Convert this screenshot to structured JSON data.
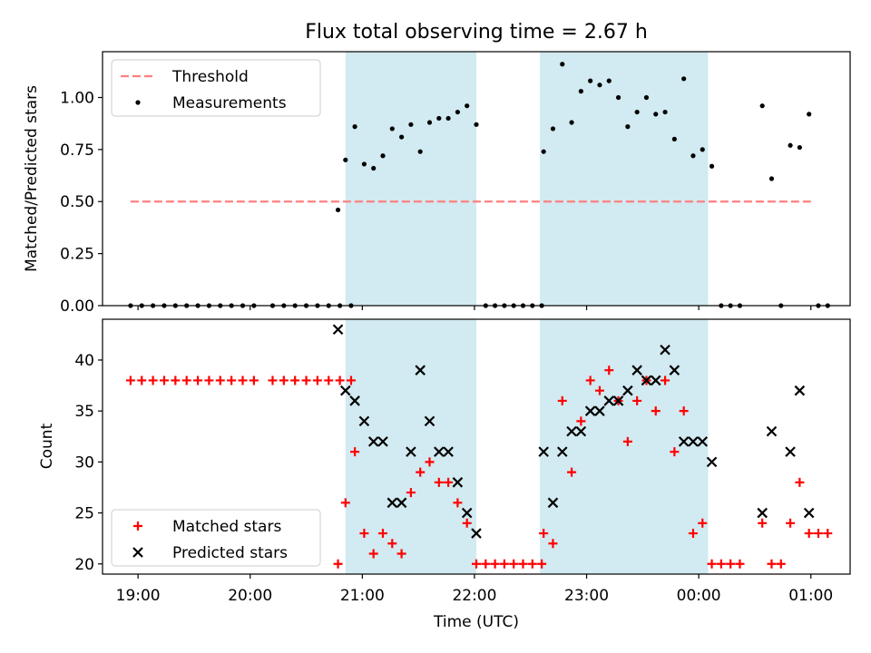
{
  "title": "Flux total observing time = 2.67 h",
  "chart_data": [
    {
      "type": "scatter",
      "ylabel": "Matched/Predicted stars",
      "ylim": [
        0,
        1.22
      ],
      "yticks": [
        0.0,
        0.25,
        0.5,
        0.75,
        1.0
      ],
      "ytick_labels": [
        "0.00",
        "0.25",
        "0.50",
        "0.75",
        "1.00"
      ],
      "threshold": {
        "name": "Threshold",
        "value": 0.5,
        "x_start": "18:56",
        "x_end": "01:00",
        "color": "#ff7f7f",
        "style": "dashed"
      },
      "series": [
        {
          "name": "Measurements",
          "color": "#000000",
          "marker": "dot",
          "points": [
            [
              "18:56",
              0
            ],
            [
              "19:02",
              0
            ],
            [
              "19:08",
              0
            ],
            [
              "19:14",
              0
            ],
            [
              "19:20",
              0
            ],
            [
              "19:26",
              0
            ],
            [
              "19:32",
              0
            ],
            [
              "19:38",
              0
            ],
            [
              "19:44",
              0
            ],
            [
              "19:50",
              0
            ],
            [
              "19:56",
              0
            ],
            [
              "20:02",
              0
            ],
            [
              "20:12",
              0
            ],
            [
              "20:18",
              0
            ],
            [
              "20:24",
              0
            ],
            [
              "20:30",
              0
            ],
            [
              "20:36",
              0
            ],
            [
              "20:42",
              0
            ],
            [
              "20:48",
              0
            ],
            [
              "20:54",
              0
            ],
            [
              "20:47",
              0.46
            ],
            [
              "20:51",
              0.7
            ],
            [
              "20:56",
              0.86
            ],
            [
              "21:01",
              0.68
            ],
            [
              "21:06",
              0.66
            ],
            [
              "21:11",
              0.72
            ],
            [
              "21:16",
              0.85
            ],
            [
              "21:21",
              0.81
            ],
            [
              "21:26",
              0.87
            ],
            [
              "21:31",
              0.74
            ],
            [
              "21:36",
              0.88
            ],
            [
              "21:41",
              0.9
            ],
            [
              "21:46",
              0.9
            ],
            [
              "21:51",
              0.93
            ],
            [
              "21:56",
              0.96
            ],
            [
              "22:01",
              0.87
            ],
            [
              "22:06",
              0
            ],
            [
              "22:11",
              0
            ],
            [
              "22:16",
              0
            ],
            [
              "22:21",
              0
            ],
            [
              "22:26",
              0
            ],
            [
              "22:31",
              0
            ],
            [
              "22:36",
              0
            ],
            [
              "22:37",
              0.74
            ],
            [
              "22:42",
              0.85
            ],
            [
              "22:47",
              1.16
            ],
            [
              "22:52",
              0.88
            ],
            [
              "22:57",
              1.03
            ],
            [
              "23:02",
              1.08
            ],
            [
              "23:07",
              1.06
            ],
            [
              "23:12",
              1.08
            ],
            [
              "23:17",
              1.0
            ],
            [
              "23:22",
              0.86
            ],
            [
              "23:27",
              0.93
            ],
            [
              "23:32",
              1.0
            ],
            [
              "23:37",
              0.92
            ],
            [
              "23:42",
              0.93
            ],
            [
              "23:47",
              0.8
            ],
            [
              "23:52",
              1.09
            ],
            [
              "23:57",
              0.72
            ],
            [
              "00:02",
              0.75
            ],
            [
              "00:07",
              0.67
            ],
            [
              "00:12",
              0
            ],
            [
              "00:17",
              0
            ],
            [
              "00:22",
              0
            ],
            [
              "00:34",
              0.96
            ],
            [
              "00:39",
              0.61
            ],
            [
              "00:44",
              0
            ],
            [
              "00:49",
              0.77
            ],
            [
              "00:54",
              0.76
            ],
            [
              "00:59",
              0.92
            ],
            [
              "01:04",
              0
            ],
            [
              "01:09",
              0
            ]
          ]
        }
      ],
      "legend": {
        "placement": "top-left",
        "entries": [
          "Threshold",
          "Measurements"
        ]
      }
    },
    {
      "type": "scatter",
      "xlabel": "Time (UTC)",
      "ylabel": "Count",
      "ylim": [
        19,
        44
      ],
      "yticks": [
        20,
        25,
        30,
        35,
        40
      ],
      "ytick_labels": [
        "20",
        "25",
        "30",
        "35",
        "40"
      ],
      "series": [
        {
          "name": "Matched stars",
          "color": "#ff0000",
          "marker": "plus",
          "points": [
            [
              "18:56",
              38
            ],
            [
              "19:02",
              38
            ],
            [
              "19:08",
              38
            ],
            [
              "19:14",
              38
            ],
            [
              "19:20",
              38
            ],
            [
              "19:26",
              38
            ],
            [
              "19:32",
              38
            ],
            [
              "19:38",
              38
            ],
            [
              "19:44",
              38
            ],
            [
              "19:50",
              38
            ],
            [
              "19:56",
              38
            ],
            [
              "20:02",
              38
            ],
            [
              "20:12",
              38
            ],
            [
              "20:18",
              38
            ],
            [
              "20:24",
              38
            ],
            [
              "20:30",
              38
            ],
            [
              "20:36",
              38
            ],
            [
              "20:42",
              38
            ],
            [
              "20:48",
              38
            ],
            [
              "20:54",
              38
            ],
            [
              "20:47",
              20
            ],
            [
              "20:51",
              26
            ],
            [
              "20:56",
              31
            ],
            [
              "21:01",
              23
            ],
            [
              "21:06",
              21
            ],
            [
              "21:11",
              23
            ],
            [
              "21:16",
              22
            ],
            [
              "21:21",
              21
            ],
            [
              "21:26",
              27
            ],
            [
              "21:31",
              29
            ],
            [
              "21:36",
              30
            ],
            [
              "21:41",
              28
            ],
            [
              "21:46",
              28
            ],
            [
              "21:51",
              26
            ],
            [
              "21:56",
              24
            ],
            [
              "22:01",
              20
            ],
            [
              "22:06",
              20
            ],
            [
              "22:11",
              20
            ],
            [
              "22:16",
              20
            ],
            [
              "22:21",
              20
            ],
            [
              "22:26",
              20
            ],
            [
              "22:31",
              20
            ],
            [
              "22:36",
              20
            ],
            [
              "22:37",
              23
            ],
            [
              "22:42",
              22
            ],
            [
              "22:47",
              36
            ],
            [
              "22:52",
              29
            ],
            [
              "22:57",
              34
            ],
            [
              "23:02",
              38
            ],
            [
              "23:07",
              37
            ],
            [
              "23:12",
              39
            ],
            [
              "23:17",
              36
            ],
            [
              "23:22",
              32
            ],
            [
              "23:27",
              36
            ],
            [
              "23:32",
              38
            ],
            [
              "23:37",
              35
            ],
            [
              "23:42",
              38
            ],
            [
              "23:47",
              31
            ],
            [
              "23:52",
              35
            ],
            [
              "23:57",
              23
            ],
            [
              "00:02",
              24
            ],
            [
              "00:07",
              20
            ],
            [
              "00:12",
              20
            ],
            [
              "00:17",
              20
            ],
            [
              "00:22",
              20
            ],
            [
              "00:34",
              24
            ],
            [
              "00:39",
              20
            ],
            [
              "00:44",
              20
            ],
            [
              "00:49",
              24
            ],
            [
              "00:54",
              28
            ],
            [
              "00:59",
              23
            ],
            [
              "01:04",
              23
            ],
            [
              "01:09",
              23
            ]
          ]
        },
        {
          "name": "Predicted stars",
          "color": "#000000",
          "marker": "x",
          "points": [
            [
              "20:47",
              43
            ],
            [
              "20:51",
              37
            ],
            [
              "20:56",
              36
            ],
            [
              "21:01",
              34
            ],
            [
              "21:06",
              32
            ],
            [
              "21:11",
              32
            ],
            [
              "21:16",
              26
            ],
            [
              "21:21",
              26
            ],
            [
              "21:26",
              31
            ],
            [
              "21:31",
              39
            ],
            [
              "21:36",
              34
            ],
            [
              "21:41",
              31
            ],
            [
              "21:46",
              31
            ],
            [
              "21:51",
              28
            ],
            [
              "21:56",
              25
            ],
            [
              "22:01",
              23
            ],
            [
              "22:37",
              31
            ],
            [
              "22:42",
              26
            ],
            [
              "22:47",
              31
            ],
            [
              "22:52",
              33
            ],
            [
              "22:57",
              33
            ],
            [
              "23:02",
              35
            ],
            [
              "23:07",
              35
            ],
            [
              "23:12",
              36
            ],
            [
              "23:17",
              36
            ],
            [
              "23:22",
              37
            ],
            [
              "23:27",
              39
            ],
            [
              "23:32",
              38
            ],
            [
              "23:37",
              38
            ],
            [
              "23:42",
              41
            ],
            [
              "23:47",
              39
            ],
            [
              "23:52",
              32
            ],
            [
              "23:57",
              32
            ],
            [
              "00:02",
              32
            ],
            [
              "00:07",
              30
            ],
            [
              "00:34",
              25
            ],
            [
              "00:39",
              33
            ],
            [
              "00:49",
              31
            ],
            [
              "00:54",
              37
            ],
            [
              "00:59",
              25
            ]
          ]
        }
      ],
      "legend": {
        "placement": "bottom-left",
        "entries": [
          "Matched stars",
          "Predicted stars"
        ]
      }
    }
  ],
  "shared_x": {
    "label": "Time (UTC)",
    "range": [
      "18:41",
      "01:21"
    ],
    "ticks": [
      "19:00",
      "20:00",
      "21:00",
      "22:00",
      "23:00",
      "00:00",
      "01:00"
    ]
  },
  "shaded_intervals": [
    {
      "start": "20:51",
      "end": "22:01",
      "color": "#add8e6"
    },
    {
      "start": "22:35",
      "end": "00:05",
      "color": "#add8e6"
    }
  ]
}
